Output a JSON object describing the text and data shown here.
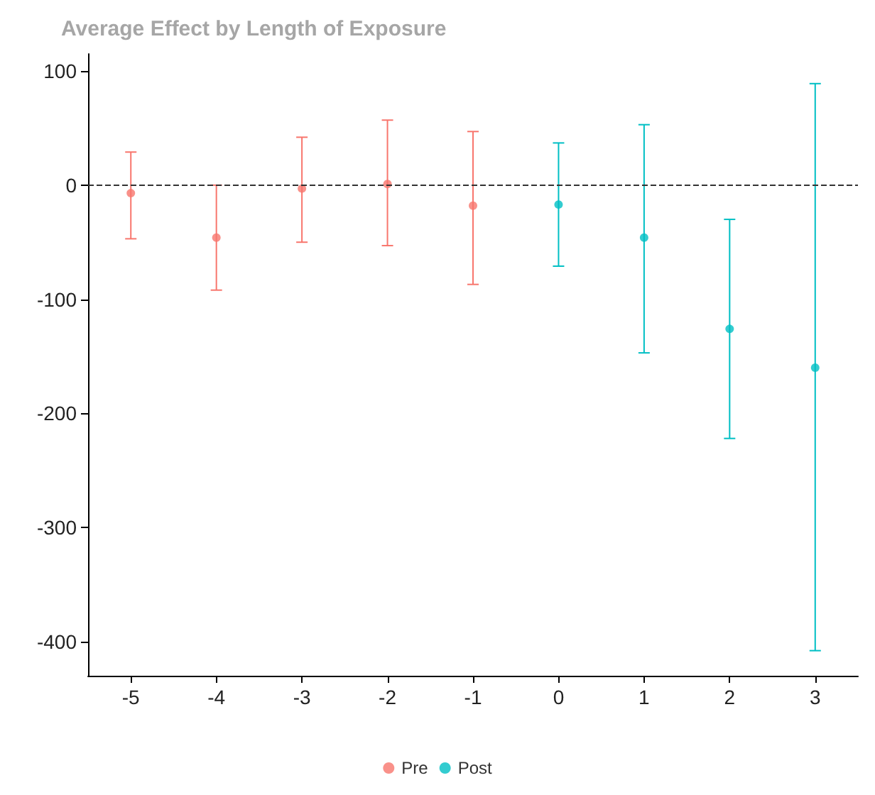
{
  "chart_data": {
    "type": "scatter",
    "title": "Average Effect by Length of Exposure",
    "categories": [
      "-5",
      "-4",
      "-3",
      "-2",
      "-1",
      "0",
      "1",
      "2",
      "3"
    ],
    "series": [
      {
        "name": "Pre",
        "color": "#f8766d",
        "values": [
          -7,
          -46,
          -3,
          1,
          -18,
          null,
          null,
          null,
          null
        ],
        "errors": [
          [
            -47,
            29
          ],
          [
            -92,
            0
          ],
          [
            -50,
            42
          ],
          [
            -53,
            57
          ],
          [
            -87,
            47
          ],
          null,
          null,
          null,
          null
        ]
      },
      {
        "name": "Post",
        "color": "#00bfc4",
        "values": [
          null,
          null,
          null,
          null,
          null,
          -17,
          -46,
          -126,
          -160
        ],
        "errors": [
          null,
          null,
          null,
          null,
          null,
          [
            -71,
            37
          ],
          [
            -147,
            53
          ],
          [
            -222,
            -30
          ],
          [
            -408,
            89
          ]
        ]
      }
    ],
    "ylim": [
      -430,
      115
    ],
    "yticks": [
      -400,
      -300,
      -200,
      -100,
      0,
      100
    ],
    "ref_lines": [
      {
        "axis": "y",
        "value": 0,
        "line_style": "dashed",
        "color": "#333333"
      }
    ],
    "grid": false,
    "legend": "bottom",
    "marker": "circle"
  }
}
